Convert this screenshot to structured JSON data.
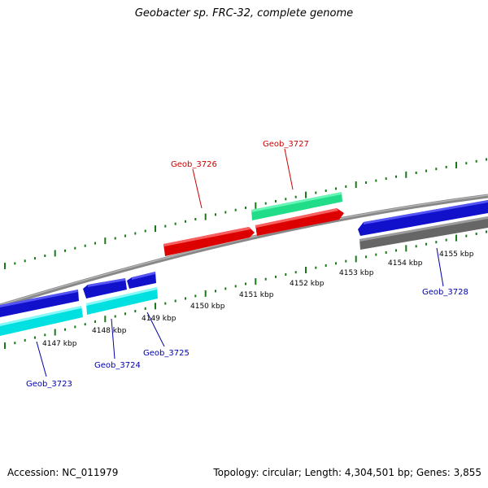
{
  "title": "Geobacter sp. FRC-32, complete genome",
  "footer": {
    "accession": "Accession: NC_011979",
    "summary": "Topology: circular; Length: 4,304,501 bp; Genes: 3,855"
  },
  "colors": {
    "backbone": "#888888",
    "tick": "#1a7a1a",
    "forward_gene_label": "#cc0000",
    "reverse_gene_label": "#0000aa"
  },
  "scale_labels": [
    "4147 kbp",
    "4148 kbp",
    "4149 kbp",
    "4150 kbp",
    "4151 kbp",
    "4152 kbp",
    "4153 kbp",
    "4154 kbp",
    "4155 kbp"
  ],
  "genes": [
    {
      "name": "Geob_3723",
      "strand": "reverse"
    },
    {
      "name": "Geob_3724",
      "strand": "reverse"
    },
    {
      "name": "Geob_3725",
      "strand": "reverse"
    },
    {
      "name": "Geob_3726",
      "strand": "forward"
    },
    {
      "name": "Geob_3727",
      "strand": "forward"
    },
    {
      "name": "Geob_3728",
      "strand": "reverse"
    }
  ]
}
